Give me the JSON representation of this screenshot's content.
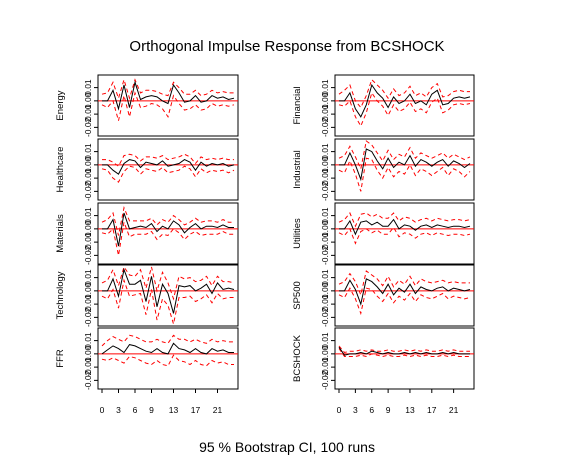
{
  "chart_data": {
    "type": "line",
    "title": "Orthogonal Impulse Response from BCSHOCK",
    "subtitle": "95 % Bootstrap CI,  100 runs",
    "x_tick_labels": [
      "0",
      "3",
      "6",
      "9",
      "13",
      "17",
      "21"
    ],
    "x_ticks": [
      0,
      3,
      6,
      9,
      13,
      17,
      21
    ],
    "x_range": [
      0,
      24
    ],
    "y_range": [
      -0.025,
      0.018
    ],
    "y_tick_labels": [
      "0.01",
      "0.00",
      "-0.01",
      "-0.02"
    ],
    "y_ticks": [
      0.01,
      0.0,
      -0.01,
      -0.02
    ],
    "zero_line": true,
    "colors": {
      "response": "#000000",
      "ci": "#ff0000",
      "zero": "#ff0000"
    },
    "panels": [
      {
        "name": "Energy",
        "response": [
          0.0,
          0.0,
          0.008,
          -0.006,
          0.012,
          -0.005,
          0.014,
          0.001,
          0.003,
          0.004,
          0.003,
          0.0,
          -0.002,
          0.012,
          0.006,
          -0.001,
          0.0,
          0.004,
          -0.001,
          0.0,
          0.004,
          0.002,
          0.003,
          0.001,
          0.002
        ],
        "upper": [
          0.005,
          0.006,
          0.014,
          0.002,
          0.016,
          0.002,
          0.016,
          0.006,
          0.008,
          0.008,
          0.007,
          0.005,
          0.004,
          0.014,
          0.01,
          0.005,
          0.005,
          0.008,
          0.004,
          0.005,
          0.008,
          0.006,
          0.007,
          0.006,
          0.006
        ],
        "lower": [
          -0.003,
          -0.005,
          0.0,
          -0.015,
          0.004,
          -0.012,
          0.006,
          -0.005,
          -0.004,
          -0.002,
          -0.003,
          -0.006,
          -0.012,
          0.004,
          -0.002,
          -0.007,
          -0.006,
          -0.003,
          -0.007,
          -0.006,
          -0.002,
          -0.004,
          -0.003,
          -0.004,
          -0.003
        ]
      },
      {
        "name": "Healthcare",
        "response": [
          0.0,
          0.0,
          -0.004,
          -0.007,
          0.001,
          0.004,
          0.003,
          -0.002,
          0.002,
          0.001,
          0.0,
          0.003,
          -0.001,
          0.0,
          0.001,
          0.004,
          0.002,
          -0.004,
          0.002,
          -0.001,
          0.001,
          0.0,
          0.001,
          -0.001,
          0.0
        ],
        "upper": [
          0.004,
          0.004,
          0.002,
          -0.001,
          0.007,
          0.008,
          0.007,
          0.003,
          0.006,
          0.006,
          0.005,
          0.007,
          0.004,
          0.005,
          0.006,
          0.008,
          0.006,
          0.001,
          0.006,
          0.004,
          0.005,
          0.004,
          0.005,
          0.004,
          0.004
        ],
        "lower": [
          -0.003,
          -0.004,
          -0.01,
          -0.013,
          -0.005,
          -0.001,
          -0.002,
          -0.007,
          -0.003,
          -0.004,
          -0.005,
          -0.002,
          -0.006,
          -0.005,
          -0.004,
          -0.001,
          -0.003,
          -0.009,
          -0.003,
          -0.006,
          -0.004,
          -0.005,
          -0.004,
          -0.006,
          -0.004
        ]
      },
      {
        "name": "Materials",
        "response": [
          0.0,
          0.0,
          0.007,
          -0.013,
          0.012,
          0.0,
          0.001,
          0.002,
          0.001,
          0.004,
          -0.002,
          0.002,
          0.0,
          0.006,
          0.003,
          -0.003,
          0.001,
          0.004,
          0.0,
          0.002,
          0.002,
          0.001,
          0.003,
          0.001,
          0.001
        ],
        "upper": [
          0.005,
          0.007,
          0.012,
          -0.005,
          0.016,
          0.006,
          0.006,
          0.006,
          0.006,
          0.008,
          0.003,
          0.007,
          0.005,
          0.01,
          0.007,
          0.003,
          0.005,
          0.008,
          0.005,
          0.006,
          0.006,
          0.005,
          0.007,
          0.005,
          0.005
        ],
        "lower": [
          -0.003,
          -0.004,
          0.0,
          -0.02,
          0.005,
          -0.006,
          -0.004,
          -0.004,
          -0.004,
          -0.002,
          -0.008,
          -0.004,
          -0.005,
          0.0,
          -0.003,
          -0.008,
          -0.004,
          -0.002,
          -0.005,
          -0.004,
          -0.004,
          -0.004,
          -0.002,
          -0.004,
          -0.004
        ]
      },
      {
        "name": "Technology",
        "response": [
          0.0,
          0.0,
          0.009,
          -0.004,
          0.016,
          0.005,
          0.005,
          0.008,
          -0.008,
          0.011,
          -0.012,
          0.005,
          -0.002,
          -0.017,
          0.004,
          0.003,
          0.004,
          0.0,
          0.002,
          0.005,
          -0.002,
          0.006,
          0.001,
          0.002,
          0.001
        ],
        "upper": [
          0.006,
          0.008,
          0.016,
          0.004,
          0.018,
          0.012,
          0.011,
          0.016,
          0.002,
          0.018,
          0.0,
          0.014,
          0.006,
          -0.006,
          0.011,
          0.009,
          0.01,
          0.007,
          0.008,
          0.011,
          0.004,
          0.011,
          0.007,
          0.007,
          0.006
        ],
        "lower": [
          -0.004,
          -0.006,
          0.001,
          -0.013,
          0.008,
          -0.004,
          -0.003,
          -0.002,
          -0.018,
          0.001,
          -0.022,
          -0.006,
          -0.011,
          -0.025,
          -0.005,
          -0.005,
          -0.004,
          -0.008,
          -0.006,
          -0.003,
          -0.009,
          -0.002,
          -0.006,
          -0.005,
          -0.005
        ]
      },
      {
        "name": "FFR",
        "response": [
          0.0,
          0.003,
          0.006,
          0.004,
          0.001,
          0.007,
          0.006,
          0.004,
          0.002,
          0.001,
          0.004,
          0.001,
          0.0,
          0.008,
          0.004,
          0.003,
          0.001,
          0.004,
          0.001,
          0.0,
          0.004,
          0.002,
          0.003,
          0.001,
          0.001
        ],
        "upper": [
          0.006,
          0.01,
          0.013,
          0.011,
          0.009,
          0.014,
          0.013,
          0.011,
          0.009,
          0.009,
          0.011,
          0.009,
          0.008,
          0.014,
          0.011,
          0.011,
          0.009,
          0.011,
          0.009,
          0.008,
          0.011,
          0.009,
          0.01,
          0.009,
          0.009
        ],
        "lower": [
          -0.004,
          -0.005,
          -0.003,
          -0.005,
          -0.007,
          -0.002,
          -0.003,
          -0.005,
          -0.007,
          -0.008,
          -0.005,
          -0.008,
          -0.009,
          -0.001,
          -0.005,
          -0.006,
          -0.008,
          -0.005,
          -0.008,
          -0.009,
          -0.005,
          -0.007,
          -0.006,
          -0.008,
          -0.008
        ]
      },
      {
        "name": "Financial",
        "response": [
          0.0,
          0.0,
          0.006,
          -0.006,
          -0.012,
          -0.003,
          0.012,
          0.006,
          0.002,
          -0.005,
          0.003,
          -0.002,
          0.0,
          0.005,
          -0.002,
          0.0,
          -0.003,
          0.005,
          0.008,
          -0.003,
          -0.002,
          0.002,
          0.003,
          0.002,
          0.003
        ],
        "upper": [
          0.005,
          0.008,
          0.012,
          0.0,
          -0.005,
          0.004,
          0.016,
          0.012,
          0.008,
          0.002,
          0.009,
          0.004,
          0.006,
          0.011,
          0.004,
          0.006,
          0.003,
          0.01,
          0.013,
          0.003,
          0.004,
          0.007,
          0.008,
          0.007,
          0.007
        ],
        "lower": [
          -0.003,
          -0.004,
          0.0,
          -0.012,
          -0.019,
          -0.009,
          0.006,
          0.0,
          -0.004,
          -0.011,
          -0.003,
          -0.008,
          -0.006,
          -0.001,
          -0.008,
          -0.006,
          -0.009,
          -0.001,
          0.002,
          -0.009,
          -0.007,
          -0.003,
          -0.002,
          -0.003,
          -0.002
        ]
      },
      {
        "name": "Industrial",
        "response": [
          0.0,
          0.0,
          0.009,
          0.0,
          -0.011,
          0.012,
          0.01,
          0.003,
          -0.003,
          0.005,
          -0.002,
          0.002,
          0.0,
          0.007,
          -0.001,
          0.004,
          0.002,
          -0.001,
          0.002,
          0.004,
          -0.001,
          0.003,
          0.001,
          -0.002,
          0.001
        ],
        "upper": [
          0.005,
          0.007,
          0.014,
          0.006,
          -0.003,
          0.018,
          0.015,
          0.009,
          0.003,
          0.011,
          0.004,
          0.008,
          0.006,
          0.013,
          0.005,
          0.009,
          0.007,
          0.005,
          0.007,
          0.009,
          0.005,
          0.008,
          0.006,
          0.004,
          0.006
        ],
        "lower": [
          -0.004,
          -0.006,
          0.003,
          -0.007,
          -0.02,
          0.005,
          0.004,
          -0.004,
          -0.01,
          -0.002,
          -0.009,
          -0.005,
          -0.007,
          0.0,
          -0.008,
          -0.003,
          -0.005,
          -0.008,
          -0.005,
          -0.002,
          -0.008,
          -0.003,
          -0.005,
          -0.009,
          -0.005
        ]
      },
      {
        "name": "Utilities",
        "response": [
          0.0,
          0.0,
          0.006,
          -0.004,
          0.005,
          0.006,
          0.003,
          0.005,
          0.002,
          0.002,
          0.007,
          0.0,
          0.003,
          0.002,
          -0.001,
          0.002,
          0.003,
          0.001,
          0.003,
          0.002,
          0.001,
          0.002,
          0.002,
          0.001,
          0.002
        ],
        "upper": [
          0.005,
          0.007,
          0.012,
          0.002,
          0.011,
          0.012,
          0.009,
          0.011,
          0.008,
          0.008,
          0.012,
          0.006,
          0.009,
          0.008,
          0.005,
          0.007,
          0.008,
          0.006,
          0.008,
          0.007,
          0.006,
          0.007,
          0.007,
          0.006,
          0.007
        ],
        "lower": [
          -0.003,
          -0.005,
          0.0,
          -0.011,
          -0.002,
          0.0,
          -0.003,
          -0.001,
          -0.004,
          -0.004,
          0.001,
          -0.006,
          -0.003,
          -0.004,
          -0.007,
          -0.004,
          -0.003,
          -0.005,
          -0.003,
          -0.004,
          -0.005,
          -0.004,
          -0.004,
          -0.005,
          -0.004
        ]
      },
      {
        "name": "SP500",
        "response": [
          0.0,
          0.0,
          0.008,
          0.001,
          -0.01,
          0.009,
          0.007,
          0.003,
          -0.002,
          0.005,
          -0.003,
          0.002,
          -0.001,
          0.005,
          -0.002,
          0.003,
          0.001,
          0.0,
          0.002,
          0.003,
          0.0,
          0.002,
          0.001,
          0.0,
          0.001
        ],
        "upper": [
          0.005,
          0.007,
          0.013,
          0.007,
          -0.003,
          0.015,
          0.012,
          0.009,
          0.004,
          0.011,
          0.003,
          0.008,
          0.005,
          0.011,
          0.004,
          0.009,
          0.007,
          0.006,
          0.007,
          0.008,
          0.006,
          0.007,
          0.006,
          0.006,
          0.006
        ],
        "lower": [
          -0.003,
          -0.005,
          0.002,
          -0.006,
          -0.017,
          0.002,
          0.001,
          -0.004,
          -0.008,
          -0.002,
          -0.009,
          -0.004,
          -0.007,
          -0.002,
          -0.008,
          -0.003,
          -0.005,
          -0.006,
          -0.004,
          -0.002,
          -0.006,
          -0.004,
          -0.005,
          -0.006,
          -0.005
        ]
      },
      {
        "name": "BCSHOCK",
        "response": [
          0.005,
          -0.001,
          0.0,
          0.0,
          0.001,
          0.0,
          0.002,
          0.001,
          0.0,
          0.001,
          0.0,
          0.0,
          0.001,
          0.0,
          0.001,
          0.0,
          0.001,
          0.0,
          0.0,
          0.001,
          0.0,
          0.001,
          0.0,
          0.0,
          0.0
        ],
        "upper": [
          0.006,
          0.001,
          0.002,
          0.002,
          0.003,
          0.002,
          0.003,
          0.002,
          0.002,
          0.003,
          0.002,
          0.002,
          0.003,
          0.002,
          0.003,
          0.002,
          0.003,
          0.002,
          0.002,
          0.003,
          0.002,
          0.003,
          0.002,
          0.002,
          0.002
        ],
        "lower": [
          0.004,
          -0.002,
          -0.002,
          -0.002,
          -0.001,
          -0.002,
          0.0,
          -0.001,
          -0.002,
          -0.001,
          -0.002,
          -0.002,
          -0.001,
          -0.002,
          -0.001,
          -0.002,
          -0.001,
          -0.002,
          -0.002,
          -0.001,
          -0.002,
          -0.001,
          -0.002,
          -0.002,
          -0.002
        ]
      }
    ]
  }
}
